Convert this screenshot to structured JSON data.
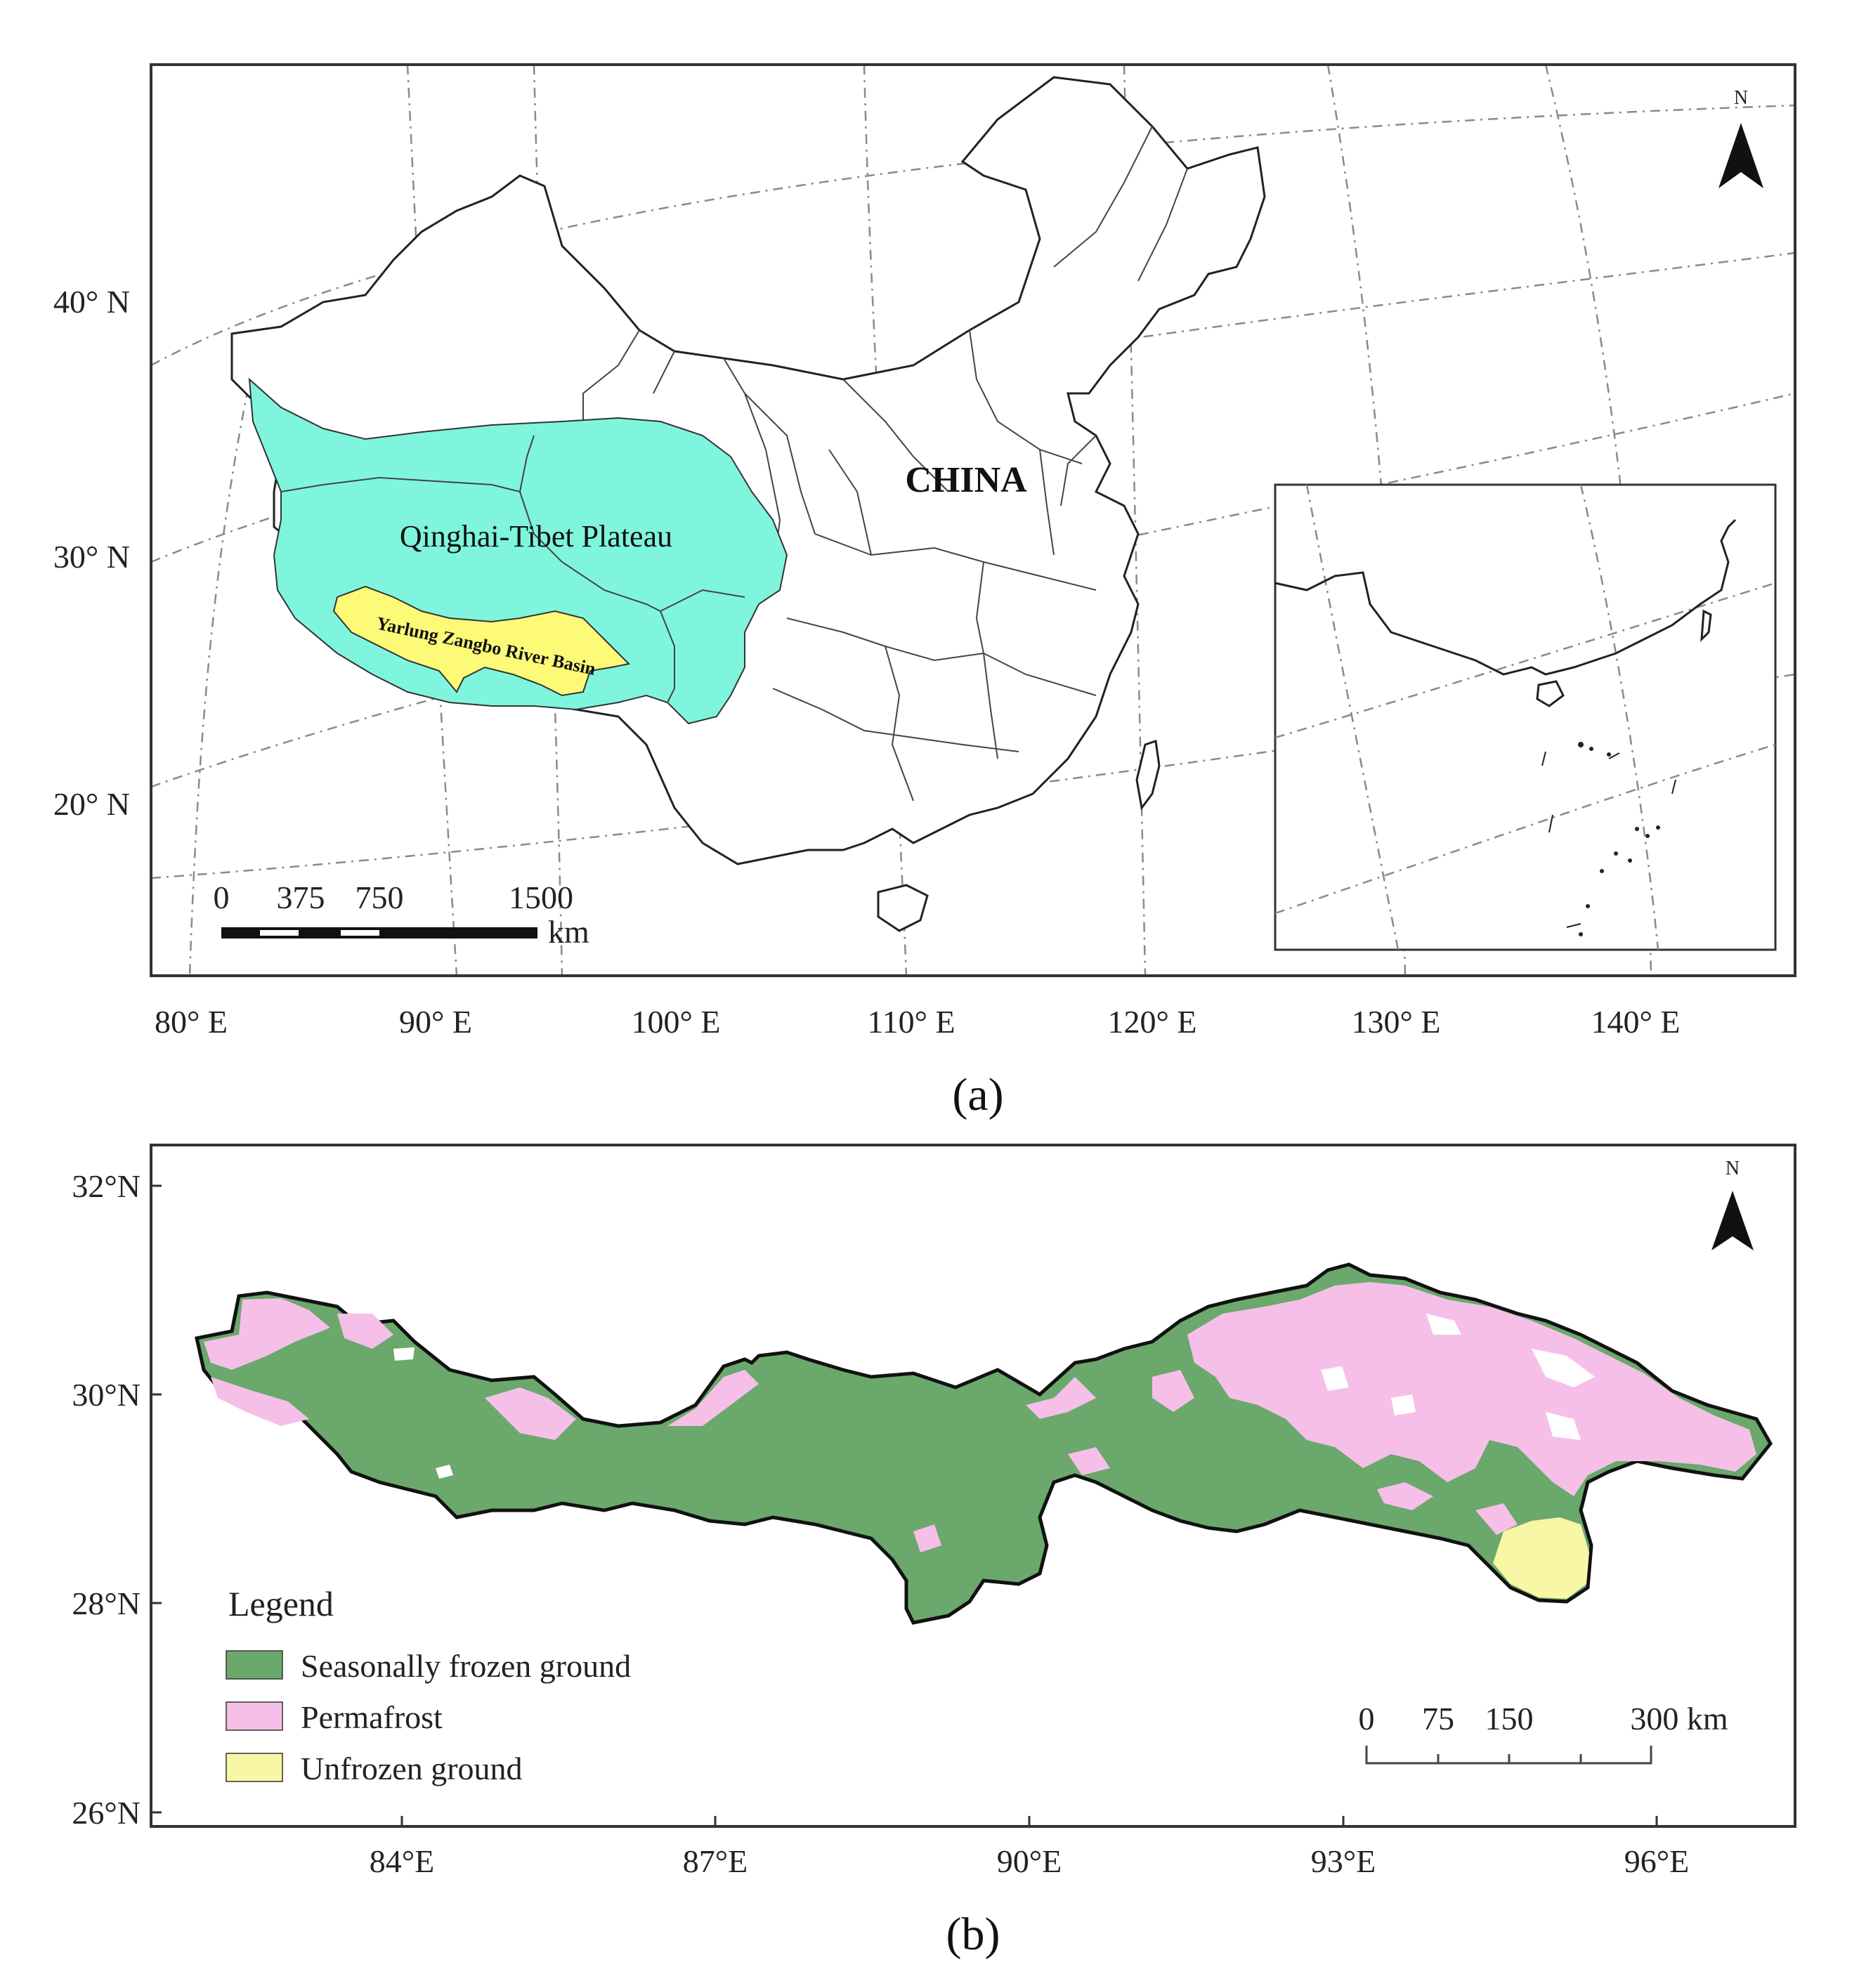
{
  "panel_a": {
    "lon_ticks": [
      "80° E",
      "90° E",
      "100° E",
      "110° E",
      "120° E",
      "130° E",
      "140° E"
    ],
    "lat_ticks": [
      "40° N",
      "30° N",
      "20° N"
    ],
    "label_country": "CHINA",
    "label_plateau": "Qinghai-Tibet Plateau",
    "label_basin": "Yarlung Zangbo River Basin",
    "north_label": "N",
    "scale_values": [
      "0",
      "375",
      "750",
      "1500"
    ],
    "scale_unit": "km",
    "caption": "(a)",
    "colors": {
      "plateau": "#7ff5dd",
      "basin": "#fdfa78"
    }
  },
  "panel_b": {
    "lat_ticks": [
      "32°N",
      "30°N",
      "28°N",
      "26°N"
    ],
    "lon_ticks": [
      "84°E",
      "87°E",
      "90°E",
      "93°E",
      "96°E"
    ],
    "north_label": "N",
    "legend": {
      "title": "Legend",
      "items": [
        {
          "label": "Seasonally frozen ground",
          "color": "#6aa86c"
        },
        {
          "label": "Permafrost",
          "color": "#f6bfe8"
        },
        {
          "label": "Unfrozen ground",
          "color": "#f7f7a6"
        }
      ]
    },
    "scale_values": [
      "0",
      "75",
      "150",
      "300 km"
    ],
    "caption": "(b)"
  }
}
